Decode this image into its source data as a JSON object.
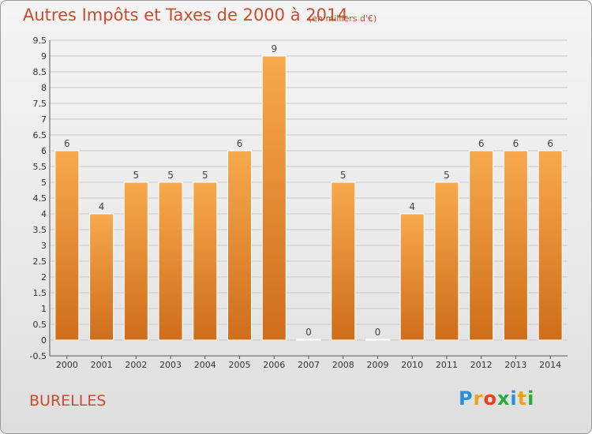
{
  "chart_data": {
    "type": "bar",
    "title": "Autres Impôts et Taxes de 2000 à 2014",
    "unit_label": "(en milliers d'€)",
    "categories": [
      "2000",
      "2001",
      "2002",
      "2003",
      "2004",
      "2005",
      "2006",
      "2007",
      "2008",
      "2009",
      "2010",
      "2011",
      "2012",
      "2013",
      "2014"
    ],
    "values": [
      6,
      4,
      5,
      5,
      5,
      6,
      9,
      0,
      5,
      0,
      4,
      5,
      6,
      6,
      6
    ],
    "ylim": [
      -0.5,
      9.5
    ],
    "yticks": [
      "9.5",
      "9",
      "8.5",
      "8",
      "7.5",
      "7",
      "6.5",
      "6",
      "5.5",
      "5",
      "4.5",
      "4",
      "3.5",
      "3",
      "2.5",
      "2",
      "1.5",
      "1",
      "0.5",
      "0",
      "-0.5"
    ],
    "grid": true,
    "bar_color": "#f29a3c"
  },
  "footer": {
    "commune": "BURELLES",
    "logo_text": [
      "P",
      "r",
      "o",
      "x",
      "i",
      "t",
      "i"
    ],
    "logo_colors": [
      "#2a8fd6",
      "#f0a020",
      "#e2431f",
      "#2aaa3a",
      "#2a8fd6",
      "#f0a020",
      "#2aaa3a"
    ]
  }
}
